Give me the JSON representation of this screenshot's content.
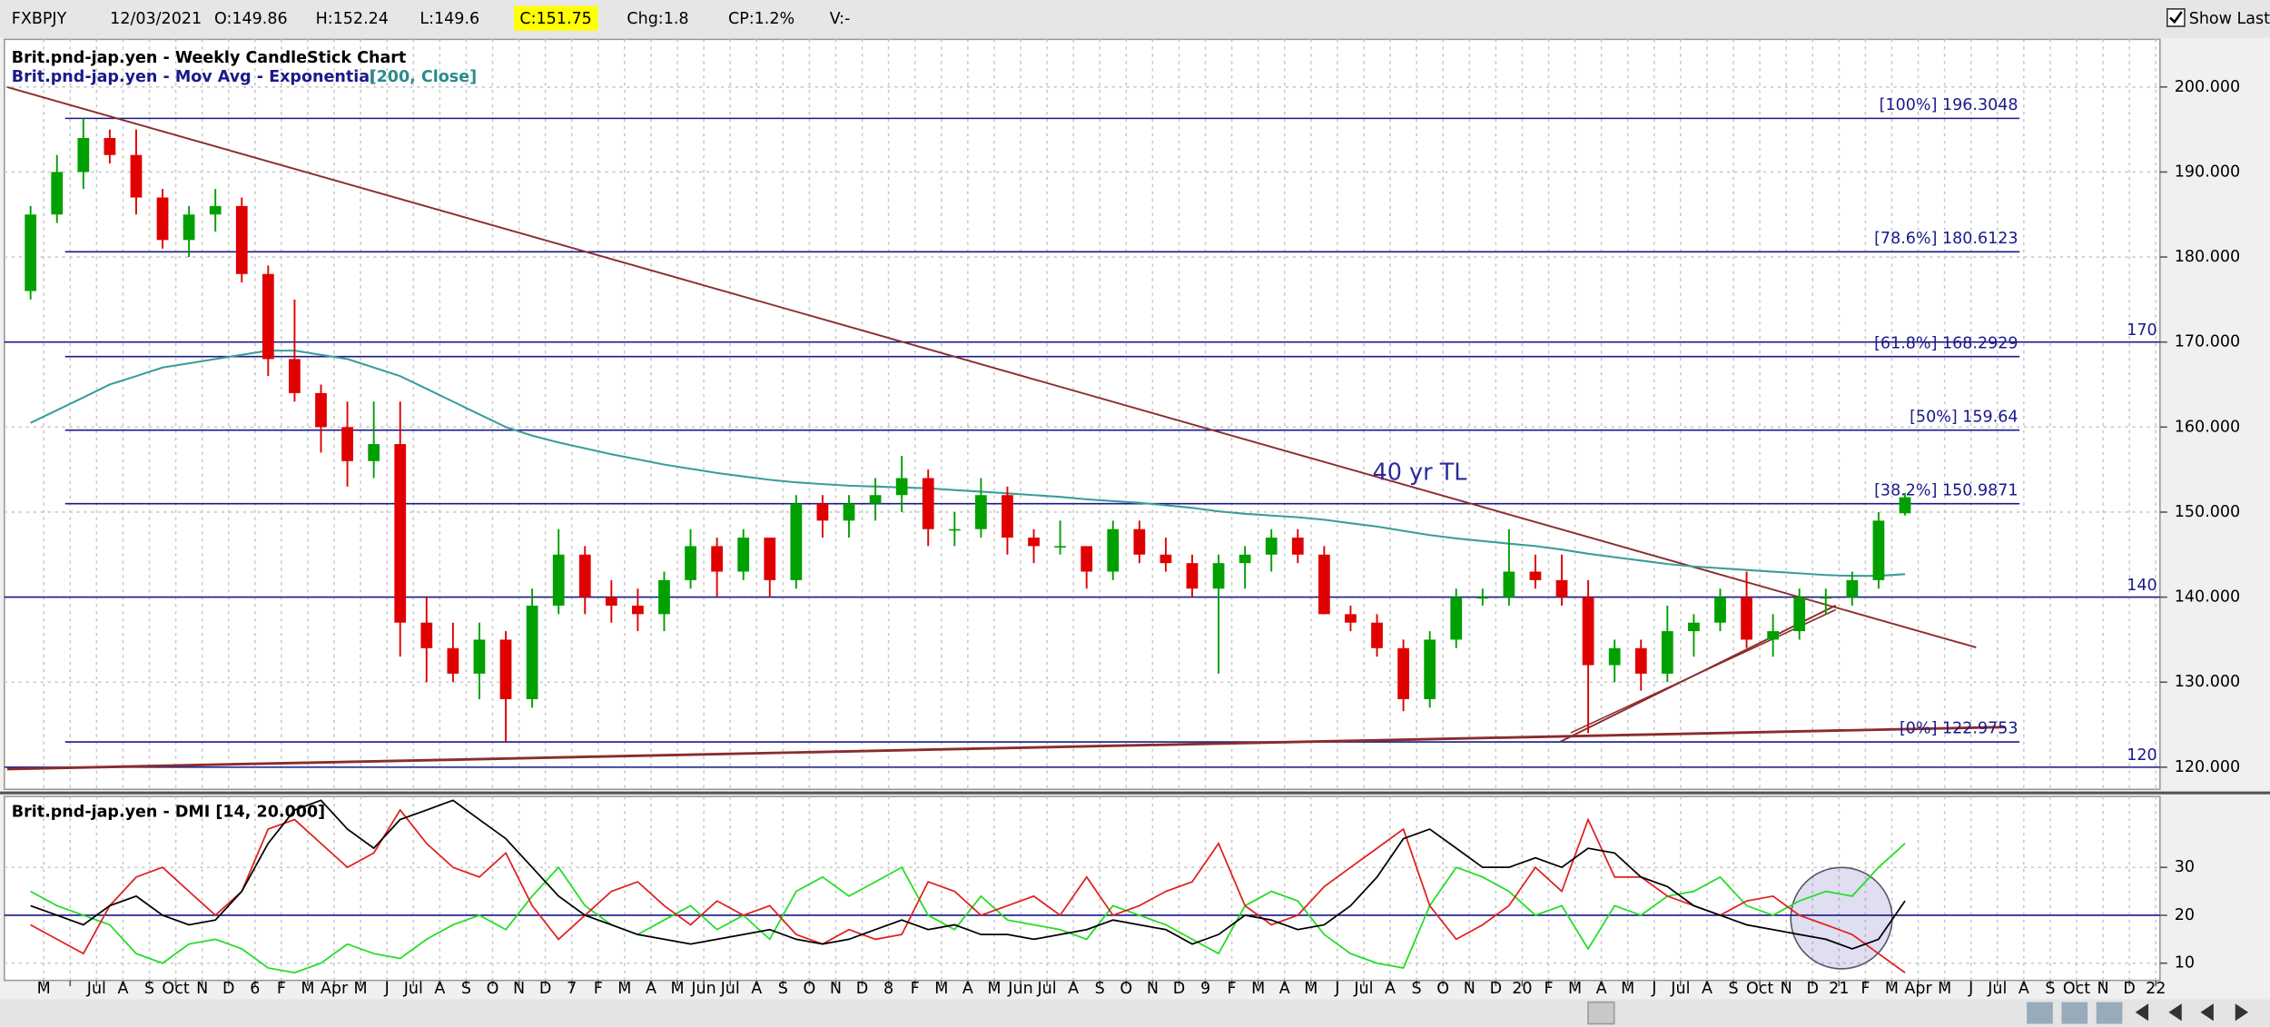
{
  "header": {
    "symbol": "FXBPJY",
    "date": "12/03/2021",
    "open": "O:149.86",
    "high": "H:152.24",
    "low": "L:149.6",
    "close": "C:151.75",
    "change": "Chg:1.8",
    "change_pct": "CP:1.2%",
    "volume": "V:-",
    "show_last": "Show Last"
  },
  "time_axis": {
    "labels": [
      "M",
      null,
      "Jul",
      "A",
      "S",
      "Oct",
      "N",
      "D",
      "6",
      "F",
      "M",
      "Apr",
      "M",
      "J",
      "Jul",
      "A",
      "S",
      "O",
      "N",
      "D",
      "7",
      "F",
      "M",
      "A",
      "M",
      "Jun",
      "Jul",
      "A",
      "S",
      "O",
      "N",
      "D",
      "8",
      "F",
      "M",
      "A",
      "M",
      "Jun",
      "Jul",
      "A",
      "S",
      "O",
      "N",
      "D",
      "9",
      "F",
      "M",
      "A",
      "M",
      "J",
      "Jul",
      "A",
      "S",
      "O",
      "N",
      "D",
      "20",
      "F",
      "M",
      "A",
      "M",
      "J",
      "Jul",
      "A",
      "S",
      "Oct",
      "N",
      "D",
      "21",
      "F",
      "M",
      "Apr",
      "M",
      "J",
      "Jul",
      "A",
      "S",
      "Oct",
      "N",
      "D",
      "22"
    ]
  },
  "chart_data": [
    {
      "type": "candlestick",
      "title": "Brit.pnd-jap.yen - Weekly CandleStick Chart",
      "ema_title": "Brit.pnd-jap.yen - Mov Avg - Exponential",
      "ema_params": "[200, Close]",
      "up_color": "#00a000",
      "down_color": "#e00000",
      "open": [
        176,
        185,
        190,
        194,
        192,
        187,
        182,
        185,
        186,
        178,
        168,
        164,
        160,
        156,
        158,
        137,
        134,
        131,
        135,
        128,
        139,
        145,
        140,
        139,
        138,
        142,
        146,
        143,
        147,
        142,
        151,
        149,
        151,
        152,
        154,
        148,
        148,
        152,
        147,
        146,
        146,
        143,
        148,
        145,
        144,
        141,
        144,
        145,
        147,
        145,
        138,
        137,
        134,
        128,
        135,
        140,
        140,
        143,
        142,
        140,
        132,
        134,
        131,
        136,
        137,
        140,
        135,
        136,
        140,
        140,
        142,
        149.86
      ],
      "high": [
        186,
        192,
        196.3,
        195,
        195,
        188,
        186,
        188,
        187,
        179,
        175,
        165,
        163,
        163,
        163,
        140,
        137,
        137,
        136,
        141,
        148,
        146,
        142,
        141,
        143,
        148,
        147,
        148,
        147,
        152,
        152,
        152,
        154,
        156.6,
        155,
        150,
        154,
        153,
        148,
        149,
        146,
        149,
        149,
        147,
        145,
        145,
        146,
        148,
        148,
        146,
        139,
        138,
        135,
        136,
        141,
        141,
        148,
        145,
        145,
        142,
        135,
        135,
        139,
        138,
        141,
        143,
        138,
        141,
        141,
        143,
        150,
        152.24
      ],
      "low": [
        175,
        184,
        188,
        191,
        185,
        181,
        180,
        183,
        177,
        166,
        163,
        157,
        153,
        154,
        133,
        130,
        130,
        128,
        122.98,
        127,
        138,
        138,
        137,
        136,
        136,
        141,
        140,
        142,
        140,
        141,
        147,
        147,
        149,
        150,
        146,
        146,
        147,
        145,
        144,
        145,
        141,
        142,
        144,
        143,
        140,
        131,
        141,
        143,
        144,
        138,
        136,
        133,
        126.6,
        127,
        134,
        139,
        139,
        141,
        139,
        124,
        130,
        129,
        130,
        133,
        136,
        134,
        133,
        135,
        138,
        139,
        141,
        149.6
      ],
      "close": [
        185,
        190,
        194,
        192,
        187,
        182,
        185,
        186,
        178,
        168,
        164,
        160,
        156,
        158,
        137,
        134,
        131,
        135,
        128,
        139,
        145,
        140,
        139,
        138,
        142,
        146,
        143,
        147,
        142,
        151,
        149,
        151,
        152,
        154,
        148,
        148,
        152,
        147,
        146,
        146,
        143,
        148,
        145,
        144,
        141,
        144,
        145,
        147,
        145,
        138,
        137,
        134,
        128,
        135,
        140,
        140,
        143,
        142,
        140,
        132,
        134,
        131,
        136,
        137,
        140,
        135,
        136,
        140,
        140,
        142,
        149,
        151.75
      ],
      "ema": {
        "color": "#3a9d9a",
        "values": [
          160.5,
          162,
          163.5,
          165,
          166,
          167,
          167.5,
          168,
          168.5,
          169,
          169,
          168.5,
          168,
          167,
          166,
          164.5,
          163,
          161.5,
          160,
          159,
          158.2,
          157.5,
          156.8,
          156.2,
          155.6,
          155.1,
          154.6,
          154.2,
          153.8,
          153.5,
          153.3,
          153.1,
          153,
          152.9,
          152.8,
          152.6,
          152.4,
          152.2,
          152,
          151.8,
          151.5,
          151.3,
          151.1,
          150.8,
          150.5,
          150.1,
          149.8,
          149.6,
          149.4,
          149.1,
          148.7,
          148.3,
          147.8,
          147.3,
          146.9,
          146.6,
          146.3,
          146,
          145.6,
          145.1,
          144.7,
          144.3,
          143.9,
          143.6,
          143.4,
          143.2,
          143,
          142.8,
          142.6,
          142.5,
          142.5,
          142.7
        ]
      },
      "ylim": [
        117.4,
        205.6
      ],
      "yticks": [
        {
          "value": 120,
          "label": "120.000"
        },
        {
          "value": 130,
          "label": "130.000"
        },
        {
          "value": 140,
          "label": "140.000"
        },
        {
          "value": 150,
          "label": "150.000"
        },
        {
          "value": 160,
          "label": "160.000"
        },
        {
          "value": 170,
          "label": "170.000"
        },
        {
          "value": 180,
          "label": "180.000"
        },
        {
          "value": 190,
          "label": "190.000"
        },
        {
          "value": 200,
          "label": "200.000"
        }
      ],
      "levels": [
        {
          "value": 196.3048,
          "label": "[100%] 196.3048"
        },
        {
          "value": 180.6123,
          "label": "[78.6%] 180.6123"
        },
        {
          "value": 168.2929,
          "label": "[61.8%] 168.2929"
        },
        {
          "value": 159.64,
          "label": "[50%] 159.64"
        },
        {
          "value": 150.9871,
          "label": "[38.2%] 150.9871"
        },
        {
          "value": 122.9753,
          "label": "[0%] 122.9753"
        }
      ],
      "hlines": [
        170,
        140,
        120
      ],
      "annotation": "40 yr TL"
    },
    {
      "type": "line",
      "title": "Brit.pnd-jap.yen - DMI [14, 20.000]",
      "ylim": [
        6.4,
        44.8
      ],
      "yticks": [
        10,
        20,
        30
      ],
      "hline": 20,
      "series": [
        {
          "color": "#22dd22",
          "values": [
            25,
            22,
            20,
            18,
            12,
            10,
            14,
            15,
            13,
            9,
            8,
            10,
            14,
            12,
            11,
            15,
            18,
            20,
            17,
            24,
            30,
            22,
            18,
            16,
            19,
            22,
            17,
            20,
            15,
            25,
            28,
            24,
            27,
            30,
            20,
            17,
            24,
            19,
            18,
            17,
            15,
            22,
            20,
            18,
            15,
            12,
            22,
            25,
            23,
            16,
            12,
            10,
            9,
            22,
            30,
            28,
            25,
            20,
            22,
            13,
            22,
            20,
            24,
            25,
            28,
            22,
            20,
            23,
            25,
            24,
            30,
            35
          ]
        },
        {
          "color": "#e02020",
          "values": [
            18,
            15,
            12,
            22,
            28,
            30,
            25,
            20,
            25,
            38,
            40,
            35,
            30,
            33,
            42,
            35,
            30,
            28,
            33,
            22,
            15,
            20,
            25,
            27,
            22,
            18,
            23,
            20,
            22,
            16,
            14,
            17,
            15,
            16,
            27,
            25,
            20,
            22,
            24,
            20,
            28,
            20,
            22,
            25,
            27,
            35,
            22,
            18,
            20,
            26,
            30,
            34,
            38,
            22,
            15,
            18,
            22,
            30,
            25,
            40,
            28,
            28,
            24,
            22,
            20,
            23,
            24,
            20,
            18,
            16,
            12,
            8
          ]
        },
        {
          "color": "#000000",
          "values": [
            22,
            20,
            18,
            22,
            24,
            20,
            18,
            19,
            25,
            35,
            42,
            44,
            38,
            34,
            40,
            42,
            44,
            40,
            36,
            30,
            24,
            20,
            18,
            16,
            15,
            14,
            15,
            16,
            17,
            15,
            14,
            15,
            17,
            19,
            17,
            18,
            16,
            16,
            15,
            16,
            17,
            19,
            18,
            17,
            14,
            16,
            20,
            19,
            17,
            18,
            22,
            28,
            36,
            38,
            34,
            30,
            30,
            32,
            30,
            34,
            33,
            28,
            26,
            22,
            20,
            18,
            17,
            16,
            15,
            13,
            15,
            23
          ]
        }
      ]
    }
  ]
}
